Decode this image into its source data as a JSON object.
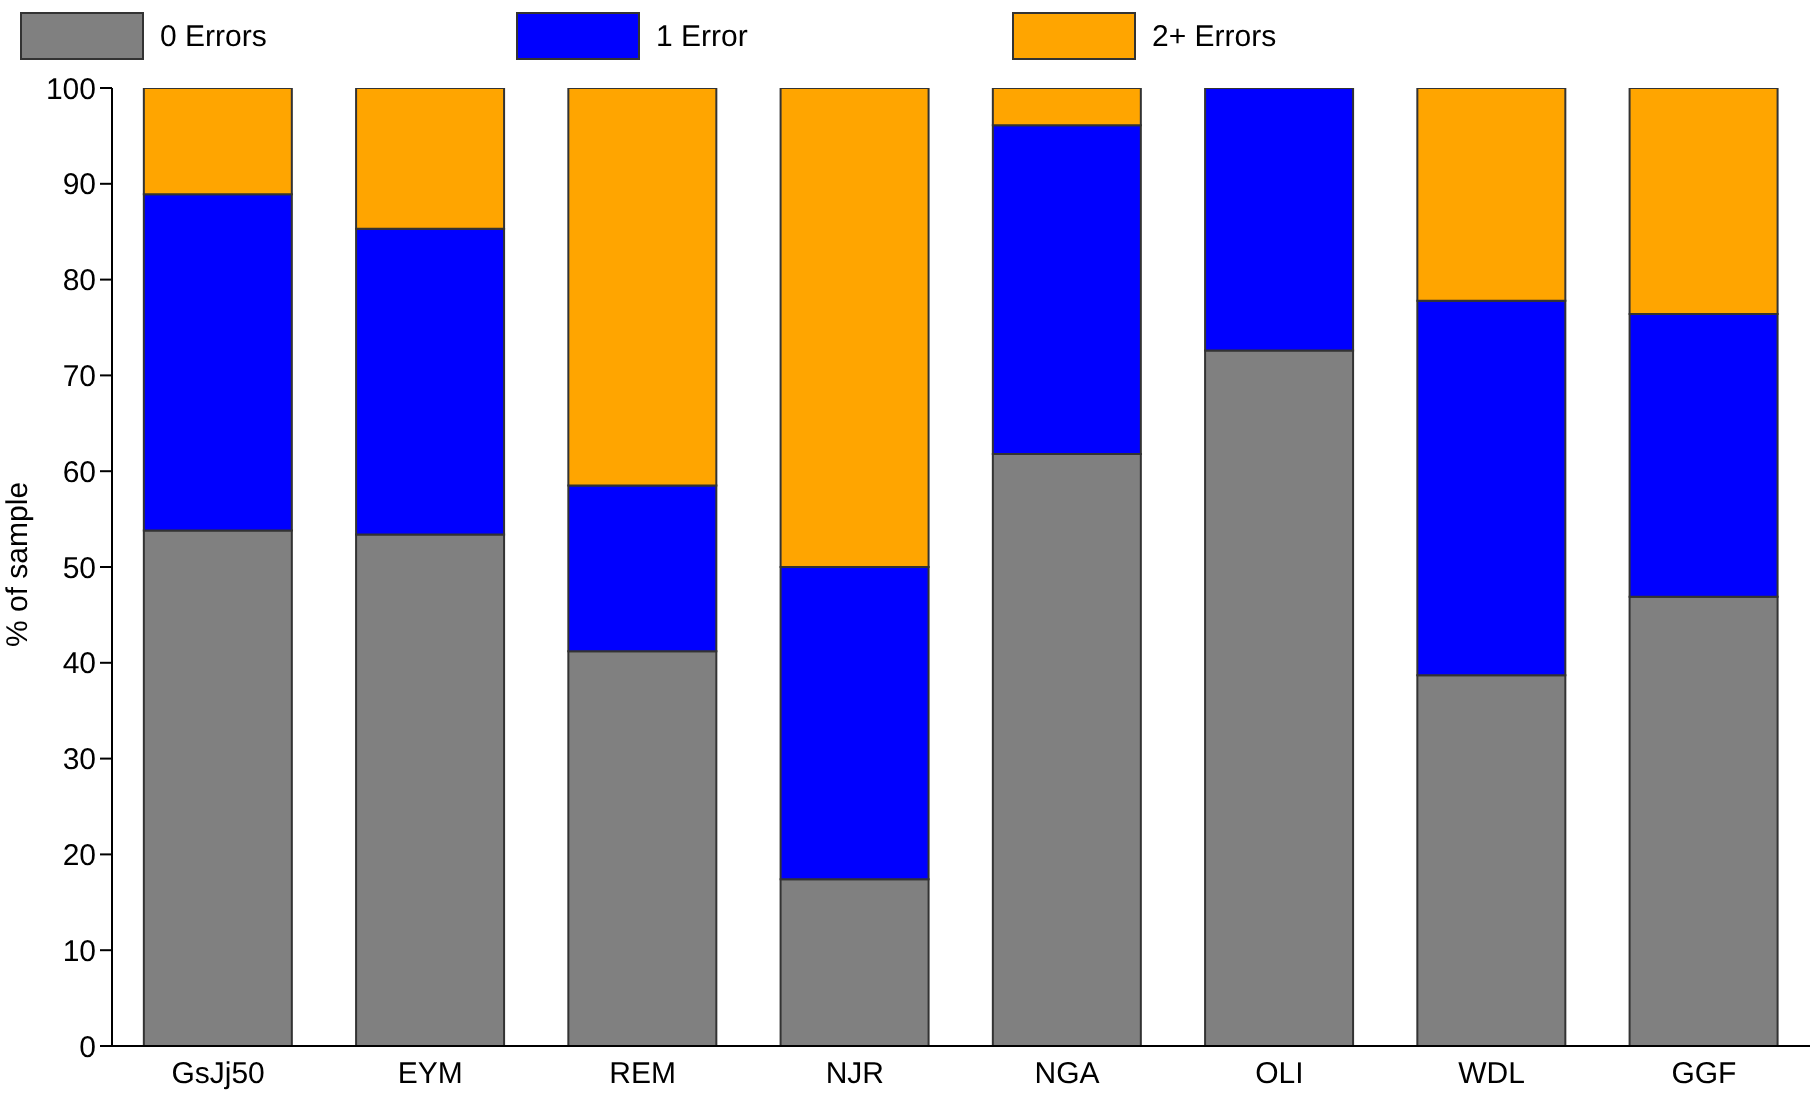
{
  "chart_data": {
    "type": "bar",
    "stacked": true,
    "ylabel": "% of sample",
    "categories": [
      "GsJj50",
      "EYM",
      "REM",
      "NJR",
      "NGA",
      "OLI",
      "WDL",
      "GGF"
    ],
    "series": [
      {
        "name": "0 Errors",
        "color": "#808080",
        "values": [
          53.8,
          53.4,
          41.2,
          17.4,
          61.8,
          72.6,
          38.7,
          46.9
        ]
      },
      {
        "name": "1 Error",
        "color": "#0000ff",
        "values": [
          35.1,
          31.9,
          17.3,
          32.6,
          34.3,
          27.4,
          39.1,
          29.5
        ]
      },
      {
        "name": "2+ Errors",
        "color": "#ffa500",
        "values": [
          11.1,
          14.7,
          41.5,
          50.0,
          3.9,
          0,
          22.2,
          23.6
        ]
      }
    ],
    "ylim": [
      0,
      100
    ],
    "yticks": [
      0,
      10,
      20,
      30,
      40,
      50,
      60,
      70,
      80,
      90,
      100
    ],
    "legend": "top left"
  }
}
